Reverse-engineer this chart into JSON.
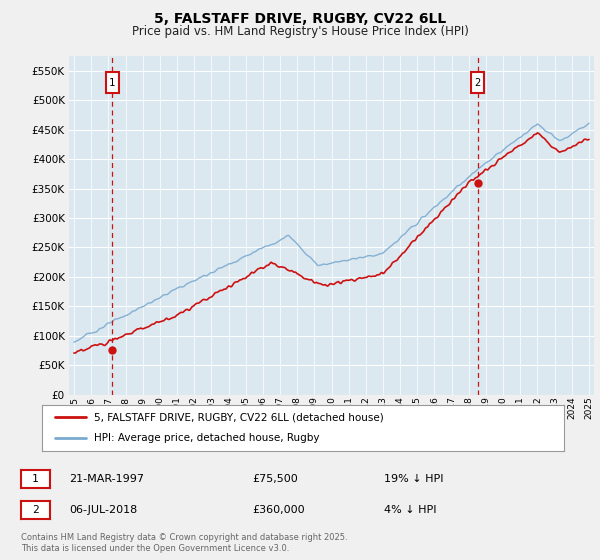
{
  "title": "5, FALSTAFF DRIVE, RUGBY, CV22 6LL",
  "subtitle": "Price paid vs. HM Land Registry's House Price Index (HPI)",
  "yticks": [
    0,
    50000,
    100000,
    150000,
    200000,
    250000,
    300000,
    350000,
    400000,
    450000,
    500000,
    550000
  ],
  "ylim": [
    0,
    575000
  ],
  "xlim_start": 1994.7,
  "xlim_end": 2025.3,
  "hpi_color": "#7aaad0",
  "price_color": "#cc1111",
  "marker1_x": 1997.22,
  "marker1_y": 75500,
  "marker1_label": "1",
  "marker1_date": "21-MAR-1997",
  "marker1_price": "£75,500",
  "marker1_hpi": "19% ↓ HPI",
  "marker2_x": 2018.51,
  "marker2_y": 360000,
  "marker2_label": "2",
  "marker2_date": "06-JUL-2018",
  "marker2_price": "£360,000",
  "marker2_hpi": "4% ↓ HPI",
  "legend_line1": "5, FALSTAFF DRIVE, RUGBY, CV22 6LL (detached house)",
  "legend_line2": "HPI: Average price, detached house, Rugby",
  "footer": "Contains HM Land Registry data © Crown copyright and database right 2025.\nThis data is licensed under the Open Government Licence v3.0.",
  "plot_bg_color": "#dce8f0",
  "grid_color": "#ffffff",
  "outer_bg": "#f0f0f0"
}
